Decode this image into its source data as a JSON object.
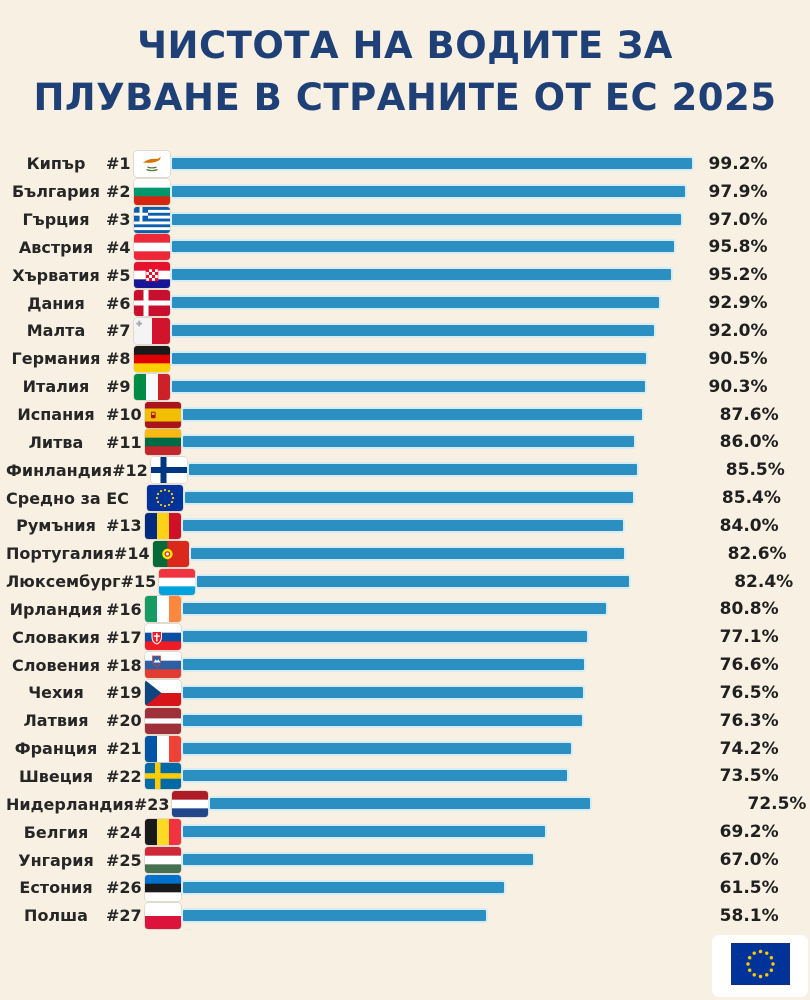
{
  "title": {
    "line1": "ЧИСТОТА НА ВОДИТЕ ЗА",
    "line2": "ПЛУВАНЕ В СТРАНИТЕ ОТ ЕС 2025"
  },
  "colors": {
    "background": "#F8F0E2",
    "title_text": "#1E4077",
    "bar_fill": "#2B90C1",
    "bar_outline": "#D6ECF6",
    "label_text": "#262626",
    "eu_flag_blue": "#003399",
    "eu_flag_star": "#FFCC00"
  },
  "footer": {
    "icon": "eu-flag"
  },
  "chart_data": {
    "type": "bar",
    "orientation": "horizontal",
    "title": "ЧИСТОТА НА ВОДИТЕ ЗА ПЛУВАНЕ В СТРАНИТЕ ОТ ЕС 2025",
    "unit": "%",
    "xlim": [
      0,
      100
    ],
    "grid": false,
    "legend": false,
    "rows": [
      {
        "country": "Кипър",
        "rank": "#1",
        "flag": "cy",
        "value": 99.2,
        "label": "99.2%"
      },
      {
        "country": "България",
        "rank": "#2",
        "flag": "bg",
        "value": 97.9,
        "label": "97.9%"
      },
      {
        "country": "Гърция",
        "rank": "#3",
        "flag": "gr",
        "value": 97.0,
        "label": "97.0%"
      },
      {
        "country": "Австрия",
        "rank": "#4",
        "flag": "at",
        "value": 95.8,
        "label": "95.8%"
      },
      {
        "country": "Хърватия",
        "rank": "#5",
        "flag": "hr",
        "value": 95.2,
        "label": "95.2%"
      },
      {
        "country": "Дания",
        "rank": "#6",
        "flag": "dk",
        "value": 92.9,
        "label": "92.9%"
      },
      {
        "country": "Малта",
        "rank": "#7",
        "flag": "mt",
        "value": 92.0,
        "label": "92.0%"
      },
      {
        "country": "Германия",
        "rank": "#8",
        "flag": "de",
        "value": 90.5,
        "label": "90.5%"
      },
      {
        "country": "Италия",
        "rank": "#9",
        "flag": "it",
        "value": 90.3,
        "label": "90.3%"
      },
      {
        "country": "Испания",
        "rank": "#10",
        "flag": "es",
        "value": 87.6,
        "label": "87.6%"
      },
      {
        "country": "Литва",
        "rank": "#11",
        "flag": "lt",
        "value": 86.0,
        "label": "86.0%"
      },
      {
        "country": "Финландия",
        "rank": "#12",
        "flag": "fi",
        "value": 85.5,
        "label": "85.5%"
      },
      {
        "country": "Средно за ЕС",
        "rank": "",
        "flag": "eu",
        "value": 85.4,
        "label": "85.4%"
      },
      {
        "country": "Румъния",
        "rank": "#13",
        "flag": "ro",
        "value": 84.0,
        "label": "84.0%"
      },
      {
        "country": "Португалия",
        "rank": "#14",
        "flag": "pt",
        "value": 82.6,
        "label": "82.6%"
      },
      {
        "country": "Люксембург",
        "rank": "#15",
        "flag": "lu",
        "value": 82.4,
        "label": "82.4%"
      },
      {
        "country": "Ирландия",
        "rank": "#16",
        "flag": "ie",
        "value": 80.8,
        "label": "80.8%"
      },
      {
        "country": "Словакия",
        "rank": "#17",
        "flag": "sk",
        "value": 77.1,
        "label": "77.1%"
      },
      {
        "country": "Словения",
        "rank": "#18",
        "flag": "si",
        "value": 76.6,
        "label": "76.6%"
      },
      {
        "country": "Чехия",
        "rank": "#19",
        "flag": "cz",
        "value": 76.5,
        "label": "76.5%"
      },
      {
        "country": "Латвия",
        "rank": "#20",
        "flag": "lv",
        "value": 76.3,
        "label": "76.3%"
      },
      {
        "country": "Франция",
        "rank": "#21",
        "flag": "fr",
        "value": 74.2,
        "label": "74.2%"
      },
      {
        "country": "Швеция",
        "rank": "#22",
        "flag": "se",
        "value": 73.5,
        "label": "73.5%"
      },
      {
        "country": "Нидерландия",
        "rank": "#23",
        "flag": "nl",
        "value": 72.5,
        "label": "72.5%"
      },
      {
        "country": "Белгия",
        "rank": "#24",
        "flag": "be",
        "value": 69.2,
        "label": "69.2%"
      },
      {
        "country": "Унгария",
        "rank": "#25",
        "flag": "hu",
        "value": 67.0,
        "label": "67.0%"
      },
      {
        "country": "Естония",
        "rank": "#26",
        "flag": "ee",
        "value": 61.5,
        "label": "61.5%"
      },
      {
        "country": "Полша",
        "rank": "#27",
        "flag": "pl",
        "value": 58.1,
        "label": "58.1%"
      }
    ]
  }
}
